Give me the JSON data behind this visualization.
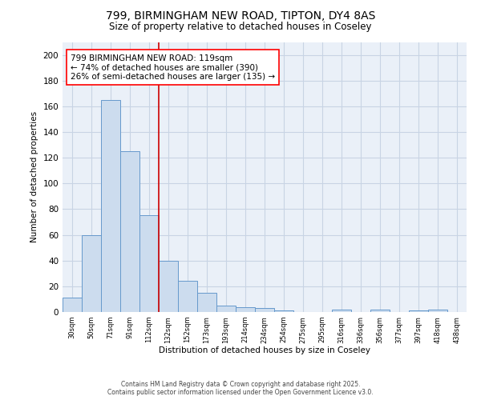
{
  "title1": "799, BIRMINGHAM NEW ROAD, TIPTON, DY4 8AS",
  "title2": "Size of property relative to detached houses in Coseley",
  "xlabel": "Distribution of detached houses by size in Coseley",
  "ylabel": "Number of detached properties",
  "categories": [
    "30sqm",
    "50sqm",
    "71sqm",
    "91sqm",
    "112sqm",
    "132sqm",
    "152sqm",
    "173sqm",
    "193sqm",
    "214sqm",
    "234sqm",
    "254sqm",
    "275sqm",
    "295sqm",
    "316sqm",
    "336sqm",
    "356sqm",
    "377sqm",
    "397sqm",
    "418sqm",
    "438sqm"
  ],
  "values": [
    11,
    60,
    165,
    125,
    75,
    40,
    24,
    15,
    5,
    4,
    3,
    1,
    0,
    0,
    2,
    0,
    2,
    0,
    1,
    2,
    0
  ],
  "bar_color": "#ccdcee",
  "bar_edge_color": "#6699cc",
  "ylim": [
    0,
    210
  ],
  "yticks": [
    0,
    20,
    40,
    60,
    80,
    100,
    120,
    140,
    160,
    180,
    200
  ],
  "red_line_x": 4.5,
  "annotation_text": "799 BIRMINGHAM NEW ROAD: 119sqm\n← 74% of detached houses are smaller (390)\n26% of semi-detached houses are larger (135) →",
  "property_line_color": "#cc0000",
  "grid_color": "#c8d4e4",
  "background_color": "#eaf0f8",
  "footer1": "Contains HM Land Registry data © Crown copyright and database right 2025.",
  "footer2": "Contains public sector information licensed under the Open Government Licence v3.0."
}
